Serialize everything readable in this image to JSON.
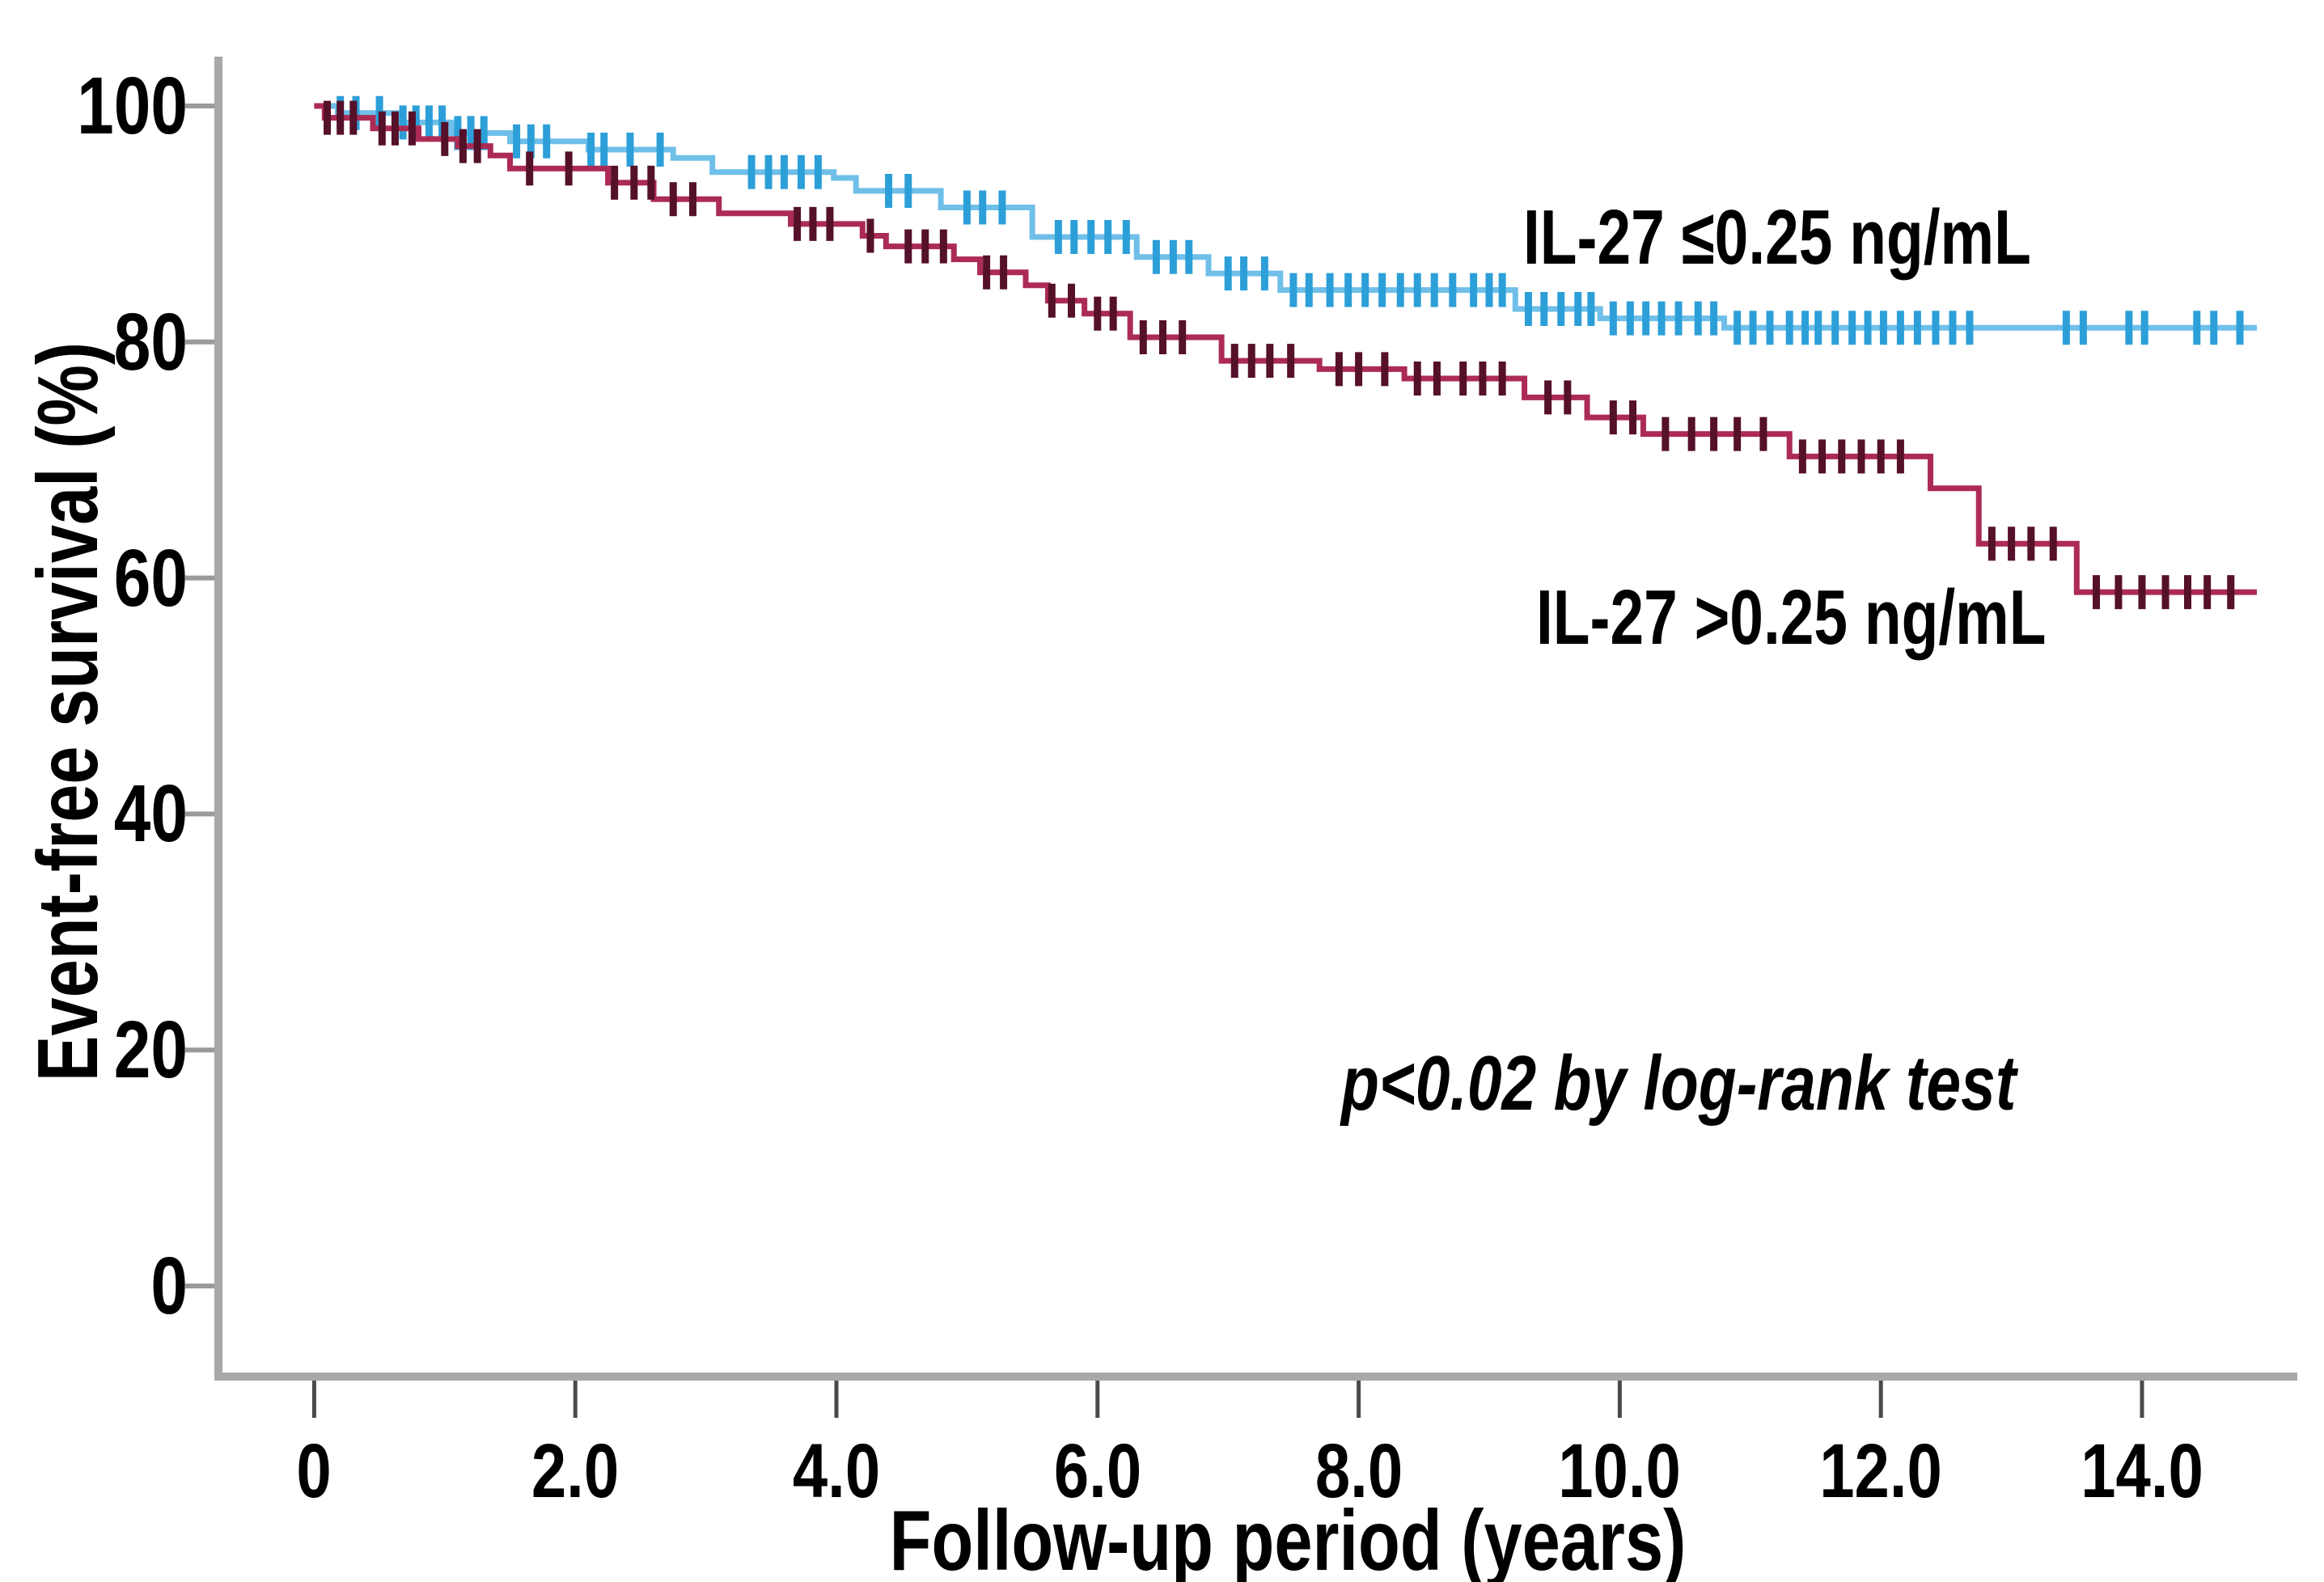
{
  "figure": {
    "background": "#ffffff",
    "axis_color": "#a8a8a8",
    "y_tick_mark_color": "#9a9a9a",
    "x_tick_mark_color": "#4a4a4a",
    "text_color": "#000000"
  },
  "chart_data": {
    "type": "line",
    "subtype": "kaplan_meier_step_curves",
    "title": "",
    "xlabel": "Follow-up period (years)",
    "ylabel": "Event-free survival (%)",
    "annotation": "p<0.02 by log-rank test",
    "grid": false,
    "legend_position": "labels-on-plot",
    "xlim": [
      0,
      15.2
    ],
    "ylim": [
      0,
      100
    ],
    "x_tick_labels": [
      "0",
      "2.0",
      "4.0",
      "6.0",
      "8.0",
      "10.0",
      "12.0",
      "14.0"
    ],
    "x_tick_values": [
      0,
      2,
      4,
      6,
      8,
      10,
      12,
      14
    ],
    "y_tick_labels": [
      "100",
      "80",
      "60",
      "40",
      "20",
      "0"
    ],
    "y_tick_values": [
      100,
      80,
      60,
      40,
      20,
      0
    ],
    "series": [
      {
        "name": "IL-27 ≤0.25 ng/mL",
        "color": "#6FBFE9",
        "censor_color": "#2D9FD8",
        "end_time": 14.88,
        "steps": [
          [
            0,
            100
          ],
          [
            0.18,
            99.4
          ],
          [
            0.65,
            98.6
          ],
          [
            1.05,
            97.7
          ],
          [
            1.5,
            97.0
          ],
          [
            2.1,
            96.3
          ],
          [
            2.75,
            95.6
          ],
          [
            3.05,
            94.4
          ],
          [
            3.98,
            93.9
          ],
          [
            4.15,
            92.8
          ],
          [
            4.8,
            91.4
          ],
          [
            5.5,
            88.9
          ],
          [
            6.3,
            87.2
          ],
          [
            6.85,
            85.8
          ],
          [
            7.4,
            84.4
          ],
          [
            9.2,
            82.8
          ],
          [
            9.85,
            82.0
          ],
          [
            10.8,
            81.2
          ]
        ],
        "censor_times": [
          0.2,
          0.32,
          0.5,
          0.68,
          0.78,
          0.88,
          0.98,
          1.1,
          1.2,
          1.3,
          1.55,
          1.66,
          1.78,
          2.12,
          2.22,
          2.42,
          2.65,
          3.35,
          3.48,
          3.6,
          3.73,
          3.86,
          4.4,
          4.55,
          5.0,
          5.12,
          5.27,
          5.7,
          5.82,
          5.95,
          6.08,
          6.22,
          6.45,
          6.58,
          6.7,
          7.0,
          7.12,
          7.28,
          7.5,
          7.62,
          7.78,
          7.92,
          8.05,
          8.18,
          8.32,
          8.45,
          8.58,
          8.72,
          8.88,
          9.0,
          9.1,
          9.3,
          9.42,
          9.55,
          9.68,
          9.78,
          9.95,
          10.08,
          10.2,
          10.32,
          10.45,
          10.6,
          10.72,
          10.9,
          11.02,
          11.15,
          11.3,
          11.42,
          11.52,
          11.65,
          11.78,
          11.9,
          12.02,
          12.15,
          12.28,
          12.42,
          12.55,
          12.68,
          13.42,
          13.55,
          13.9,
          14.02,
          14.42,
          14.55,
          14.75
        ]
      },
      {
        "name": "IL-27 >0.25 ng/mL",
        "color": "#AC2B55",
        "censor_color": "#55102A",
        "end_time": 14.88,
        "steps": [
          [
            0,
            100
          ],
          [
            0.08,
            99.0
          ],
          [
            0.45,
            98.1
          ],
          [
            0.8,
            97.2
          ],
          [
            1.1,
            96.6
          ],
          [
            1.35,
            95.8
          ],
          [
            1.5,
            94.7
          ],
          [
            2.25,
            93.5
          ],
          [
            2.6,
            92.1
          ],
          [
            3.1,
            90.9
          ],
          [
            3.65,
            90.0
          ],
          [
            4.2,
            89.0
          ],
          [
            4.38,
            88.1
          ],
          [
            4.9,
            87.0
          ],
          [
            5.1,
            85.9
          ],
          [
            5.45,
            84.8
          ],
          [
            5.62,
            83.5
          ],
          [
            5.9,
            82.4
          ],
          [
            6.25,
            80.4
          ],
          [
            6.95,
            78.4
          ],
          [
            7.7,
            77.7
          ],
          [
            8.35,
            76.9
          ],
          [
            9.27,
            75.3
          ],
          [
            9.75,
            73.6
          ],
          [
            10.18,
            72.2
          ],
          [
            11.3,
            70.3
          ],
          [
            12.38,
            67.6
          ],
          [
            12.75,
            62.9
          ],
          [
            13.5,
            58.8
          ]
        ],
        "censor_times": [
          0.1,
          0.2,
          0.3,
          0.52,
          0.62,
          0.75,
          1.0,
          1.14,
          1.25,
          1.65,
          1.95,
          2.3,
          2.45,
          2.58,
          2.75,
          2.9,
          3.7,
          3.82,
          3.95,
          4.26,
          4.55,
          4.68,
          4.82,
          5.15,
          5.28,
          5.65,
          5.8,
          6.0,
          6.12,
          6.35,
          6.5,
          6.65,
          7.05,
          7.18,
          7.32,
          7.48,
          7.85,
          8.0,
          8.2,
          8.45,
          8.6,
          8.8,
          8.95,
          9.1,
          9.45,
          9.6,
          9.95,
          10.1,
          10.35,
          10.55,
          10.72,
          10.9,
          11.1,
          11.4,
          11.55,
          11.7,
          11.85,
          12.0,
          12.15,
          12.85,
          13.0,
          13.15,
          13.32,
          13.65,
          13.82,
          14.0,
          14.18,
          14.35,
          14.5,
          14.68
        ]
      }
    ]
  }
}
